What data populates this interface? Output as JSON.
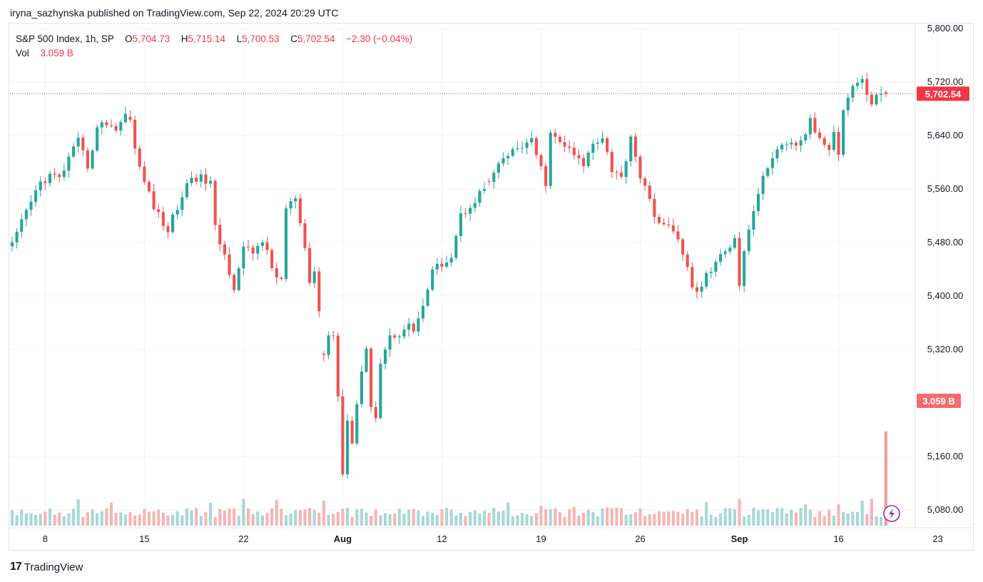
{
  "publish_line": "iryna_sazhynska published on TradingView.com, Sep 22, 2024 20:29 UTC",
  "legend": {
    "symbol": "S&P 500 Index, 1h, SP",
    "o_label": "O",
    "o_value": "5,704.73",
    "h_label": "H",
    "h_value": "5,715.14",
    "l_label": "L",
    "l_value": "5,700.53",
    "c_label": "C",
    "c_value": "5,702.54",
    "change": "−2.30 (−0.04%)",
    "vol_label": "Vol",
    "vol_value": "3.059 B"
  },
  "brand": {
    "logo_mark": "17",
    "name": "TradingView"
  },
  "colors": {
    "up": "#26a69a",
    "down": "#ef5350",
    "vol_up": "#a8d8d4",
    "vol_down": "#f5b5b3",
    "badge": "#f23645",
    "grid": "#f0f3fa",
    "axis_text": "#131722"
  },
  "chart_data": {
    "type": "candlestick",
    "symbol": "S&P 500 Index",
    "interval": "1h",
    "ylim": [
      5040,
      5820
    ],
    "y_ticks": [
      "5,800.00",
      "5,720.00",
      "5,640.00",
      "5,560.00",
      "5,480.00",
      "5,400.00",
      "5,320.00",
      "5,160.00",
      "5,080.00"
    ],
    "y_tick_values": [
      5800,
      5720,
      5640,
      5560,
      5480,
      5400,
      5320,
      5160,
      5080
    ],
    "x_ticks": [
      {
        "label": "8",
        "bold": false
      },
      {
        "label": "15",
        "bold": false
      },
      {
        "label": "22",
        "bold": false
      },
      {
        "label": "Aug",
        "bold": true
      },
      {
        "label": "12",
        "bold": false
      },
      {
        "label": "19",
        "bold": false
      },
      {
        "label": "26",
        "bold": false
      },
      {
        "label": "Sep",
        "bold": true
      },
      {
        "label": "16",
        "bold": false
      },
      {
        "label": "23",
        "bold": false
      }
    ],
    "x_tick_bar_index": [
      7,
      28,
      49,
      70,
      91,
      112,
      133,
      154,
      175,
      196
    ],
    "last_price": 5702.54,
    "last_price_label": "5,702.54",
    "last_volume_label": "3.059 B",
    "price_path": [
      [
        0,
        5475
      ],
      [
        3,
        5525
      ],
      [
        6,
        5570
      ],
      [
        8,
        5580
      ],
      [
        10,
        5575
      ],
      [
        12,
        5605
      ],
      [
        14,
        5630
      ],
      [
        16,
        5595
      ],
      [
        18,
        5650
      ],
      [
        20,
        5660
      ],
      [
        22,
        5650
      ],
      [
        24,
        5670
      ],
      [
        25,
        5670
      ],
      [
        26,
        5620
      ],
      [
        27,
        5590
      ],
      [
        30,
        5535
      ],
      [
        32,
        5505
      ],
      [
        33,
        5500
      ],
      [
        36,
        5550
      ],
      [
        38,
        5580
      ],
      [
        40,
        5575
      ],
      [
        42,
        5570
      ],
      [
        43,
        5500
      ],
      [
        45,
        5460
      ],
      [
        47,
        5415
      ],
      [
        49,
        5470
      ],
      [
        51,
        5465
      ],
      [
        53,
        5485
      ],
      [
        55,
        5440
      ],
      [
        56,
        5430
      ],
      [
        57,
        5425
      ],
      [
        58,
        5530
      ],
      [
        60,
        5545
      ],
      [
        61,
        5505
      ],
      [
        62,
        5465
      ],
      [
        63,
        5420
      ],
      [
        64,
        5435
      ],
      [
        65,
        5380
      ],
      [
        66,
        5310
      ],
      [
        67,
        5340
      ],
      [
        68,
        5345
      ],
      [
        69,
        5250
      ],
      [
        70,
        5140
      ],
      [
        71,
        5220
      ],
      [
        72,
        5180
      ],
      [
        73,
        5240
      ],
      [
        74,
        5290
      ],
      [
        75,
        5315
      ],
      [
        76,
        5240
      ],
      [
        77,
        5220
      ],
      [
        78,
        5300
      ],
      [
        79,
        5320
      ],
      [
        80,
        5340
      ],
      [
        82,
        5345
      ],
      [
        84,
        5355
      ],
      [
        85,
        5350
      ],
      [
        87,
        5385
      ],
      [
        89,
        5435
      ],
      [
        91,
        5450
      ],
      [
        93,
        5460
      ],
      [
        95,
        5520
      ],
      [
        98,
        5545
      ],
      [
        100,
        5560
      ],
      [
        102,
        5580
      ],
      [
        104,
        5605
      ],
      [
        106,
        5615
      ],
      [
        108,
        5625
      ],
      [
        110,
        5630
      ],
      [
        112,
        5590
      ],
      [
        113,
        5570
      ],
      [
        114,
        5640
      ],
      [
        117,
        5625
      ],
      [
        119,
        5610
      ],
      [
        121,
        5595
      ],
      [
        123,
        5630
      ],
      [
        125,
        5640
      ],
      [
        127,
        5590
      ],
      [
        129,
        5575
      ],
      [
        131,
        5640
      ],
      [
        132,
        5610
      ],
      [
        133,
        5580
      ],
      [
        135,
        5540
      ],
      [
        137,
        5510
      ],
      [
        139,
        5500
      ],
      [
        141,
        5490
      ],
      [
        143,
        5440
      ],
      [
        144,
        5410
      ],
      [
        145,
        5405
      ],
      [
        147,
        5430
      ],
      [
        149,
        5450
      ],
      [
        151,
        5465
      ],
      [
        153,
        5490
      ],
      [
        154,
        5420
      ],
      [
        155,
        5470
      ],
      [
        157,
        5530
      ],
      [
        159,
        5575
      ],
      [
        161,
        5610
      ],
      [
        163,
        5620
      ],
      [
        165,
        5625
      ],
      [
        167,
        5630
      ],
      [
        169,
        5660
      ],
      [
        171,
        5635
      ],
      [
        173,
        5625
      ],
      [
        174,
        5650
      ],
      [
        175,
        5610
      ],
      [
        176,
        5680
      ],
      [
        178,
        5715
      ],
      [
        180,
        5720
      ],
      [
        182,
        5690
      ],
      [
        184,
        5705
      ],
      [
        185,
        5702.54
      ]
    ],
    "gaps_after_index": [
      24,
      65,
      100
    ],
    "volume_profile": {
      "baseline": 1.0,
      "spikes": [
        {
          "index": 66,
          "value": 1.6
        },
        {
          "index": 154,
          "value": 1.7
        },
        {
          "index": 180,
          "value": 1.6
        },
        {
          "index": 185,
          "value": 6.0
        }
      ]
    },
    "grid": true,
    "legend_position": "top-left"
  }
}
